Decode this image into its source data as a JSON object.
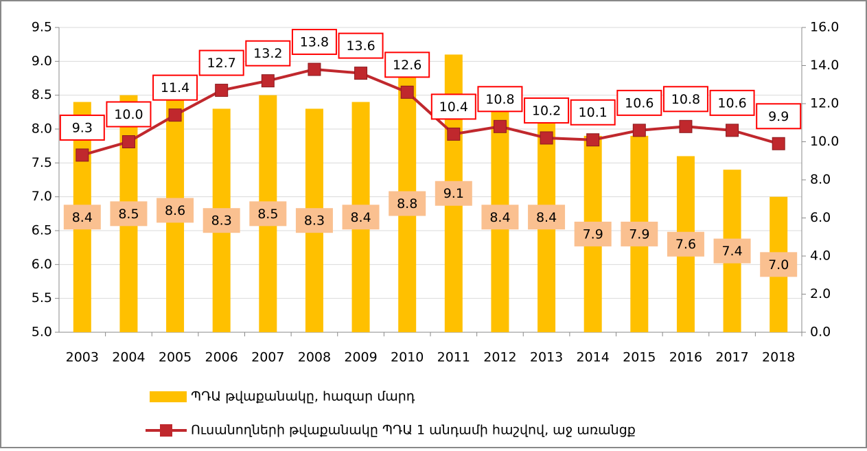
{
  "chart_data": {
    "type": "bar-line",
    "categories": [
      "2003",
      "2004",
      "2005",
      "2006",
      "2007",
      "2008",
      "2009",
      "2010",
      "2011",
      "2012",
      "2013",
      "2014",
      "2015",
      "2016",
      "2017",
      "2018"
    ],
    "series": [
      {
        "name": "ՊԴԱ թվաքանակը, հազար մարդ",
        "type": "bar",
        "color": "#ffc000",
        "label_color": "#fac090",
        "values": [
          8.4,
          8.5,
          8.6,
          8.3,
          8.5,
          8.3,
          8.4,
          8.8,
          9.1,
          8.4,
          8.4,
          7.9,
          7.9,
          7.6,
          7.4,
          7.0
        ],
        "value_labels": [
          "8.4",
          "8.5",
          "8.6",
          "8.3",
          "8.5",
          "8.3",
          "8.4",
          "8.8",
          "9.1",
          "8.4",
          "8.4",
          "7.9",
          "7.9",
          "7.6",
          "7.4",
          "7.0"
        ]
      },
      {
        "name": "Ուսանողների թվաքանակը ՊԴԱ 1 անդամի հաշվով, աջ առանցք",
        "type": "line",
        "axis": "y2",
        "color": "#c0282d",
        "label_border": "#ff0000",
        "values": [
          9.3,
          10.0,
          11.4,
          12.7,
          13.2,
          13.8,
          13.6,
          12.6,
          10.4,
          10.8,
          10.2,
          10.1,
          10.6,
          10.8,
          10.6,
          9.9
        ],
        "value_labels": [
          "9.3",
          "10.0",
          "11.4",
          "12.7",
          "13.2",
          "13.8",
          "13.6",
          "12.6",
          "10.4",
          "10.8",
          "10.2",
          "10.1",
          "10.6",
          "10.8",
          "10.6",
          "9.9"
        ]
      }
    ],
    "ylim": [
      5,
      9.5
    ],
    "yticks": [
      {
        "value": 5,
        "label": "5.0"
      },
      5.5,
      {
        "value": 6,
        "label": "6.0"
      },
      6.5,
      {
        "value": 7,
        "label": "7.0"
      },
      7.5,
      {
        "value": 8,
        "label": "8.0"
      },
      8.5,
      {
        "value": 9,
        "label": "9.0"
      },
      9.5
    ],
    "y2lim": [
      0,
      16
    ],
    "y2ticks": [
      {
        "value": 0,
        "label": "0.0"
      },
      {
        "value": 2,
        "label": "2.0"
      },
      {
        "value": 4,
        "label": "4.0"
      },
      {
        "value": 6,
        "label": "6.0"
      },
      {
        "value": 8,
        "label": "8.0"
      },
      {
        "value": 10,
        "label": "10.0"
      },
      {
        "value": 12,
        "label": "12.0"
      },
      {
        "value": 14,
        "label": "14.0"
      },
      {
        "value": 16,
        "label": "16.0"
      }
    ],
    "grid": true
  }
}
